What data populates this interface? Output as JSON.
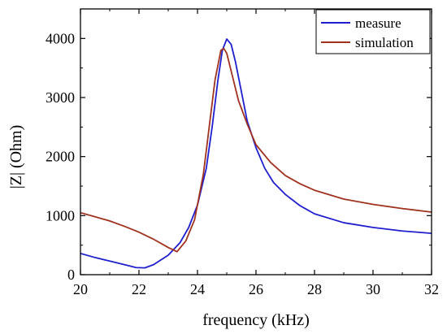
{
  "chart_data": {
    "type": "line",
    "xlabel": "frequency (kHz)",
    "ylabel": "|Z| (Ohm)",
    "xlim": [
      20,
      32
    ],
    "ylim": [
      0,
      4500
    ],
    "xticks": [
      20,
      22,
      24,
      26,
      28,
      30,
      32
    ],
    "yticks": [
      0,
      1000,
      2000,
      3000,
      4000
    ],
    "x_tick_labels": [
      "20",
      "22",
      "24",
      "26",
      "28",
      "30",
      "32"
    ],
    "y_tick_labels": [
      "0",
      "1000",
      "2000",
      "3000",
      "4000"
    ],
    "grid": false,
    "legend": {
      "position": "top-right"
    },
    "series": [
      {
        "name": "measure",
        "color": "#1f1fd0",
        "points": [
          [
            20.0,
            360
          ],
          [
            20.5,
            290
          ],
          [
            21.0,
            230
          ],
          [
            21.5,
            170
          ],
          [
            21.9,
            120
          ],
          [
            22.2,
            115
          ],
          [
            22.5,
            170
          ],
          [
            23.0,
            330
          ],
          [
            23.4,
            540
          ],
          [
            23.7,
            800
          ],
          [
            24.0,
            1180
          ],
          [
            24.3,
            1800
          ],
          [
            24.5,
            2500
          ],
          [
            24.7,
            3300
          ],
          [
            24.85,
            3800
          ],
          [
            25.0,
            3990
          ],
          [
            25.15,
            3900
          ],
          [
            25.3,
            3600
          ],
          [
            25.5,
            3100
          ],
          [
            25.7,
            2600
          ],
          [
            26.0,
            2150
          ],
          [
            26.3,
            1800
          ],
          [
            26.6,
            1560
          ],
          [
            27.0,
            1360
          ],
          [
            27.5,
            1170
          ],
          [
            28.0,
            1030
          ],
          [
            29.0,
            880
          ],
          [
            30.0,
            800
          ],
          [
            31.0,
            740
          ],
          [
            32.0,
            700
          ]
        ]
      },
      {
        "name": "simulation",
        "color": "#a0321e",
        "points": [
          [
            20.0,
            1050
          ],
          [
            20.5,
            980
          ],
          [
            21.0,
            910
          ],
          [
            21.5,
            820
          ],
          [
            22.0,
            720
          ],
          [
            22.5,
            600
          ],
          [
            23.0,
            460
          ],
          [
            23.3,
            390
          ],
          [
            23.6,
            570
          ],
          [
            23.9,
            930
          ],
          [
            24.2,
            1700
          ],
          [
            24.4,
            2500
          ],
          [
            24.6,
            3300
          ],
          [
            24.8,
            3800
          ],
          [
            24.9,
            3830
          ],
          [
            25.0,
            3750
          ],
          [
            25.2,
            3350
          ],
          [
            25.4,
            2950
          ],
          [
            25.7,
            2550
          ],
          [
            26.0,
            2200
          ],
          [
            26.5,
            1900
          ],
          [
            27.0,
            1680
          ],
          [
            27.5,
            1540
          ],
          [
            28.0,
            1430
          ],
          [
            29.0,
            1280
          ],
          [
            30.0,
            1190
          ],
          [
            31.0,
            1120
          ],
          [
            32.0,
            1060
          ]
        ]
      }
    ]
  }
}
